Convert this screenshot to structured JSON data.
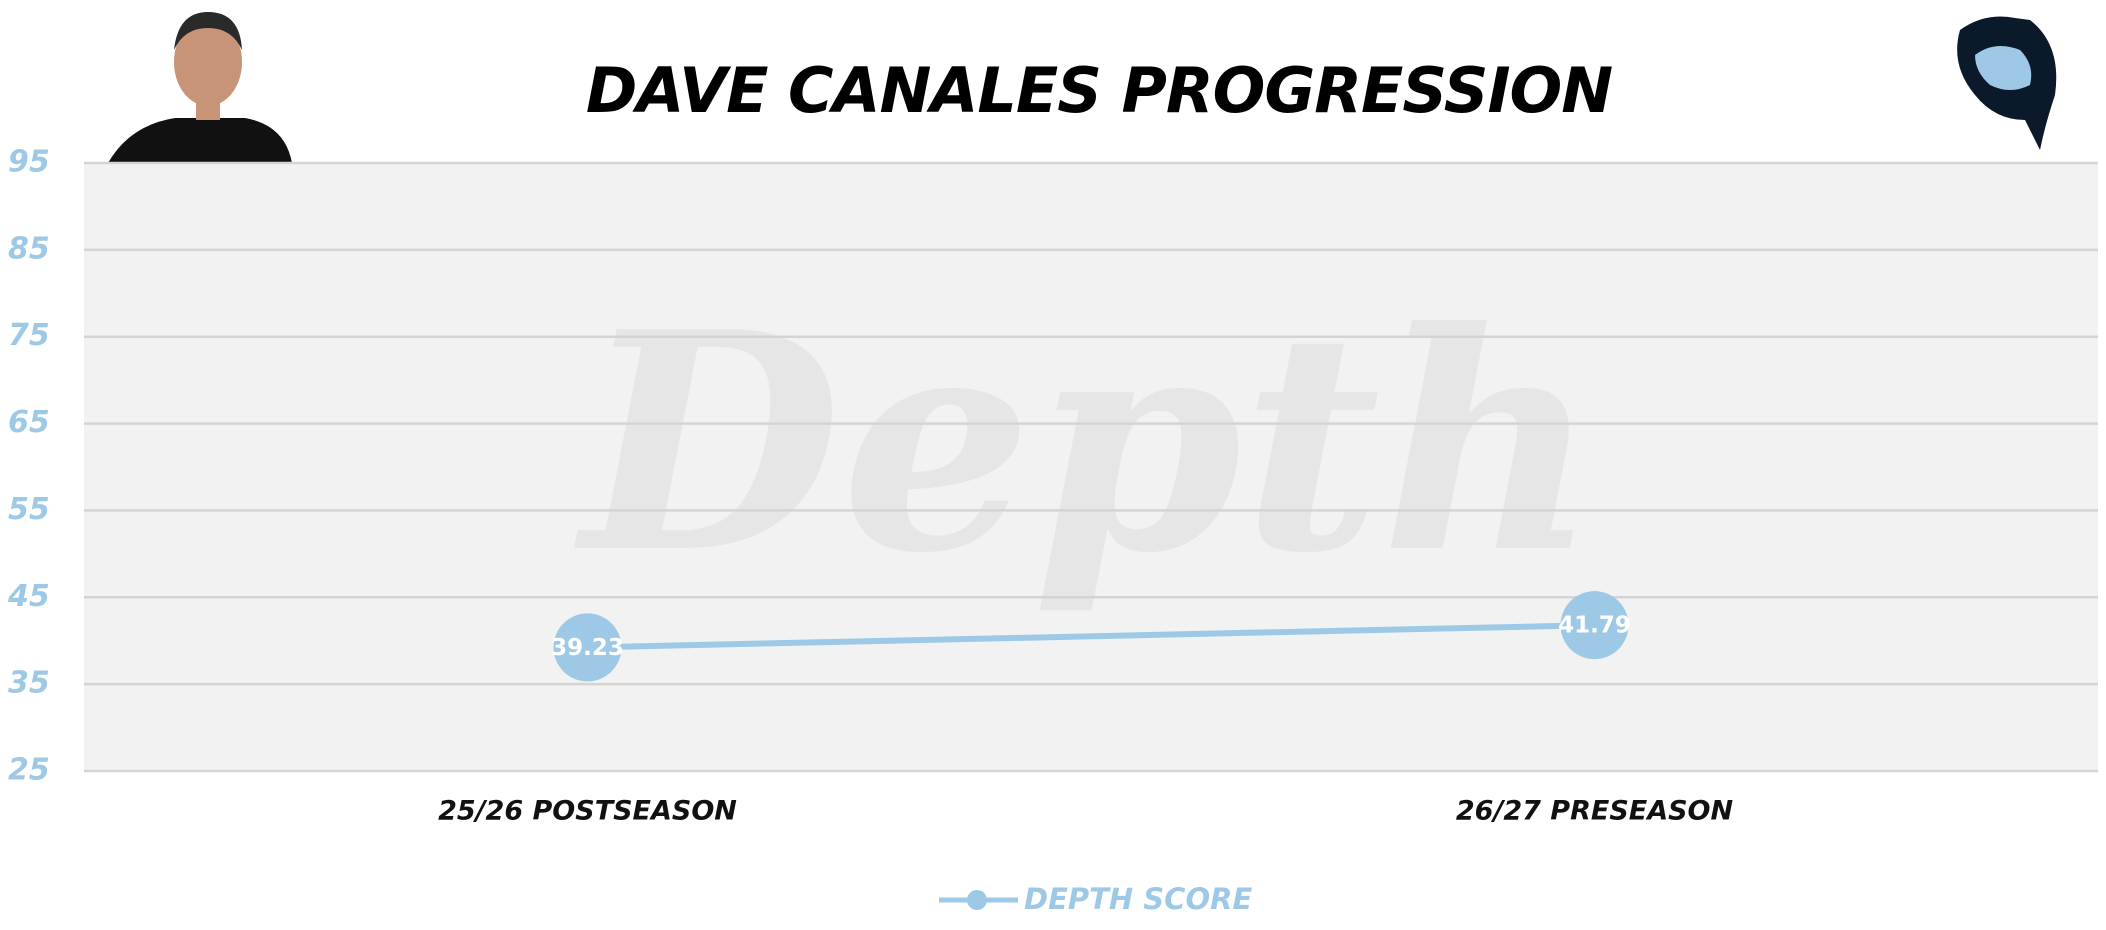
{
  "chart_data": {
    "type": "line",
    "title": "DAVE CANALES PROGRESSION",
    "watermark": "Depth",
    "categories": [
      "25/26 POSTSEASON",
      "26/27 PRESEASON"
    ],
    "series": [
      {
        "name": "DEPTH SCORE",
        "color": "#9dc9e6",
        "values": [
          39.23,
          41.79
        ]
      }
    ],
    "ylim": [
      25,
      95
    ],
    "yticks": [
      25,
      35,
      45,
      55,
      65,
      75,
      85,
      95
    ],
    "grid": true
  }
}
